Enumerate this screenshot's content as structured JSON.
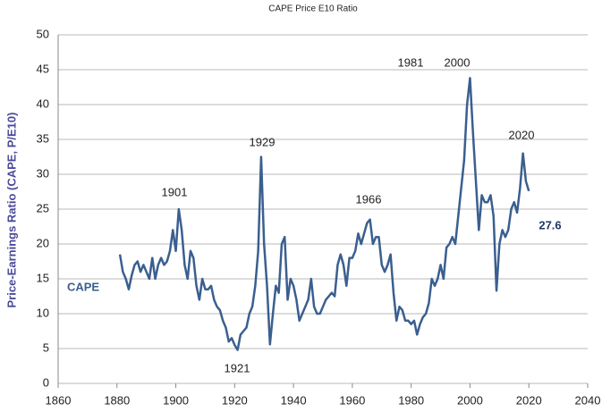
{
  "chart_data": {
    "type": "line",
    "title": "CAPE Price E10 Ratio",
    "y_label": "Price-Earnings Ratio (CAPE, P/E10)",
    "annotations": [
      "1901",
      "1929",
      "1966",
      "1981",
      "2000",
      "2020",
      "1921"
    ],
    "x": [
      1881,
      1882,
      1883,
      1884,
      1885,
      1886,
      1887,
      1888,
      1889,
      1890,
      1891,
      1892,
      1893,
      1894,
      1895,
      1896,
      1897,
      1898,
      1899,
      1900,
      1901,
      1902,
      1903,
      1904,
      1905,
      1906,
      1907,
      1908,
      1909,
      1910,
      1911,
      1912,
      1913,
      1914,
      1915,
      1916,
      1917,
      1918,
      1919,
      1920,
      1921,
      1922,
      1923,
      1924,
      1925,
      1926,
      1927,
      1928,
      1929,
      1930,
      1931,
      1932,
      1933,
      1934,
      1935,
      1936,
      1937,
      1938,
      1939,
      1940,
      1941,
      1942,
      1943,
      1944,
      1945,
      1946,
      1947,
      1948,
      1949,
      1950,
      1951,
      1952,
      1953,
      1954,
      1955,
      1956,
      1957,
      1958,
      1959,
      1960,
      1961,
      1962,
      1963,
      1964,
      1965,
      1966,
      1967,
      1968,
      1969,
      1970,
      1971,
      1972,
      1973,
      1974,
      1975,
      1976,
      1977,
      1978,
      1979,
      1980,
      1981,
      1982,
      1983,
      1984,
      1985,
      1986,
      1987,
      1988,
      1989,
      1990,
      1991,
      1992,
      1993,
      1994,
      1995,
      1996,
      1997,
      1998,
      1999,
      2000,
      2001,
      2002,
      2003,
      2004,
      2005,
      2006,
      2007,
      2008,
      2009,
      2010,
      2011,
      2012,
      2013,
      2014,
      2015,
      2016,
      2017,
      2018,
      2019,
      2020
    ],
    "series": [
      {
        "name": "CAPE",
        "color": "#3a5f8f",
        "values": [
          18.5,
          16,
          15,
          13.5,
          15.5,
          17,
          17.5,
          16,
          17,
          16,
          15,
          18,
          15,
          17,
          18,
          17,
          17.5,
          19,
          22,
          19,
          25,
          22,
          17,
          15,
          19,
          18,
          14,
          12,
          15,
          13.5,
          13.5,
          14,
          12,
          11,
          10.5,
          9,
          8,
          6,
          6.5,
          5.5,
          4.8,
          7,
          7.5,
          8,
          10,
          11,
          14,
          19,
          32.5,
          20,
          14,
          5.6,
          10,
          14,
          13,
          20,
          21,
          12,
          15,
          14,
          12,
          9,
          10,
          11,
          12,
          15,
          11,
          10,
          10,
          11,
          12,
          12.5,
          13,
          12.5,
          17,
          18.5,
          17,
          14,
          18,
          18,
          19,
          21.5,
          20,
          21.5,
          23,
          23.5,
          20,
          21,
          21,
          17,
          16,
          17,
          18.5,
          13,
          9,
          11,
          10.5,
          9,
          9,
          8.5,
          9,
          7,
          8.5,
          9.5,
          10,
          11.5,
          15,
          14,
          15,
          17,
          15,
          19.5,
          20,
          21,
          20,
          24,
          28,
          32,
          40,
          43.8,
          36,
          29,
          22,
          27,
          26,
          26,
          27,
          24,
          13.3,
          20,
          22,
          21,
          22,
          25,
          26,
          24.5,
          28,
          33,
          29,
          27.6
        ]
      }
    ],
    "xlim": [
      1860,
      2040
    ],
    "xticks": [
      1860,
      1880,
      1900,
      1920,
      1940,
      1960,
      1980,
      2000,
      2020,
      2040
    ],
    "ylim": [
      0,
      50
    ],
    "yticks": [
      0,
      5,
      10,
      15,
      20,
      25,
      30,
      35,
      40,
      45,
      50
    ],
    "grid": true
  }
}
